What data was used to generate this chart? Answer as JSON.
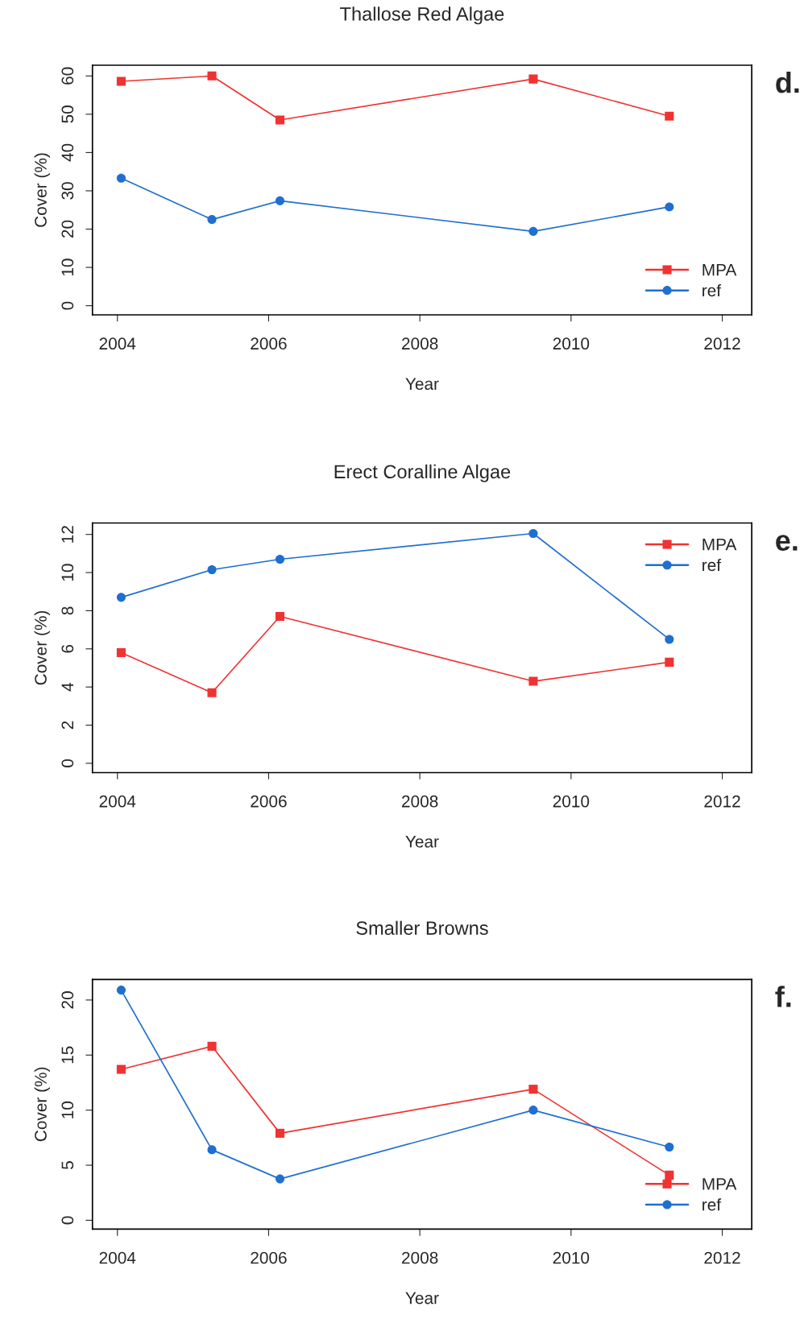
{
  "chart_data": [
    {
      "type": "line",
      "title": "Thallose Red Algae",
      "xlabel": "Year",
      "ylabel": "Cover (%)",
      "annotations": [
        "d."
      ],
      "x": [
        2004.05,
        2005.25,
        2006.15,
        2009.5,
        2011.3
      ],
      "series": [
        {
          "name": "MPA",
          "color": "#f03232",
          "marker": "square",
          "values": [
            58.6,
            60,
            48.5,
            59.2,
            49.5
          ]
        },
        {
          "name": "ref",
          "color": "#1f6fd0",
          "marker": "circle",
          "values": [
            33.3,
            22.5,
            27.4,
            19.4,
            25.8
          ]
        }
      ],
      "xlim": [
        2003.67,
        2012.39
      ],
      "xticks": [
        2004,
        2006,
        2008,
        2010,
        2012
      ],
      "ylim": [
        -2.4,
        62.8
      ],
      "yticks": [
        0,
        10,
        20,
        30,
        40,
        50,
        60
      ],
      "grid": false,
      "legend": "bottom right",
      "line_style": "solid"
    },
    {
      "type": "line",
      "title": "Erect Coralline Algae",
      "xlabel": "Year",
      "ylabel": "Cover (%)",
      "annotations": [
        "e."
      ],
      "x": [
        2004.05,
        2005.25,
        2006.15,
        2009.5,
        2011.3
      ],
      "series": [
        {
          "name": "MPA",
          "color": "#f03232",
          "marker": "square",
          "values": [
            5.8,
            3.7,
            7.7,
            4.3,
            5.3
          ]
        },
        {
          "name": "ref",
          "color": "#1f6fd0",
          "marker": "circle",
          "values": [
            8.7,
            10.15,
            10.7,
            12.05,
            6.5
          ]
        }
      ],
      "xlim": [
        2003.67,
        2012.39
      ],
      "xticks": [
        2004,
        2006,
        2008,
        2010,
        2012
      ],
      "ylim": [
        -0.49,
        12.6
      ],
      "yticks": [
        0,
        2,
        4,
        6,
        8,
        10,
        12
      ],
      "grid": false,
      "legend": "top right",
      "line_style": "solid"
    },
    {
      "type": "line",
      "title": "Smaller Browns",
      "xlabel": "Year",
      "ylabel": "Cover (%)",
      "annotations": [
        "f."
      ],
      "x": [
        2004.05,
        2005.25,
        2006.15,
        2009.5,
        2011.3
      ],
      "series": [
        {
          "name": "MPA",
          "color": "#f03232",
          "marker": "square",
          "values": [
            13.7,
            15.8,
            7.9,
            11.9,
            4.1
          ]
        },
        {
          "name": "ref",
          "color": "#1f6fd0",
          "marker": "circle",
          "values": [
            20.9,
            6.4,
            3.75,
            10.0,
            6.65
          ]
        }
      ],
      "xlim": [
        2003.67,
        2012.39
      ],
      "xticks": [
        2004,
        2006,
        2008,
        2010,
        2012
      ],
      "ylim": [
        -0.8,
        21.87
      ],
      "yticks": [
        0,
        5,
        10,
        15,
        20
      ],
      "grid": false,
      "legend": "bottom right",
      "line_style": "solid"
    }
  ]
}
